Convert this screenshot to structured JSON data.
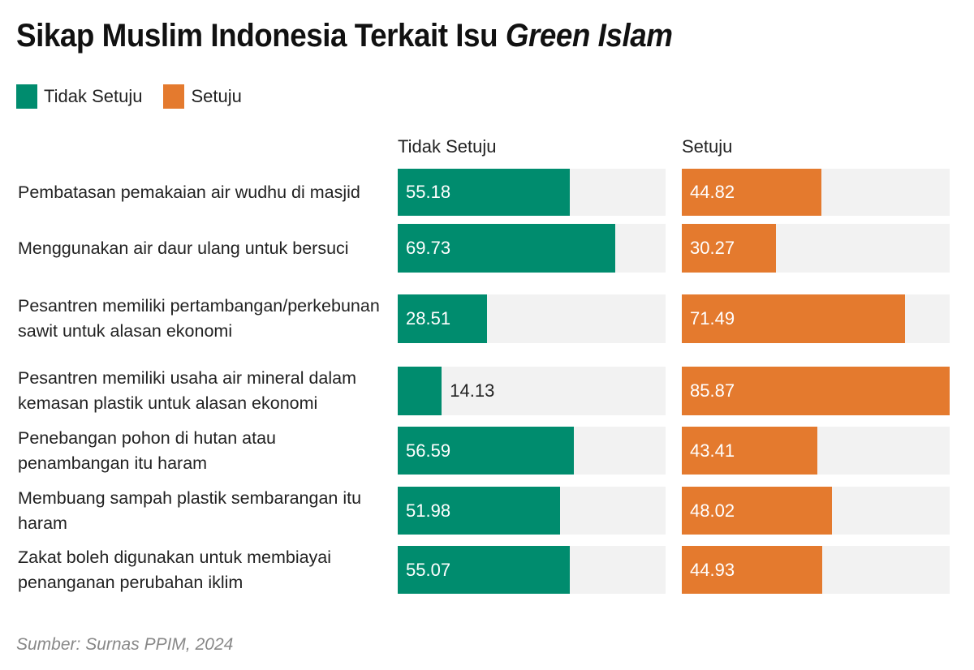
{
  "chart_data": {
    "type": "bar",
    "title_plain": "Sikap Muslim Indonesia Terkait Isu ",
    "title_italic": "Green Islam",
    "categories": [
      "Pembatasan pemakaian air wudhu di masjid",
      "Menggunakan air daur ulang untuk bersuci",
      "Pesantren memiliki pertambangan/perkebunan sawit untuk alasan ekonomi",
      "Pesantren memiliki usaha air mineral dalam kemasan plastik untuk alasan ekonomi",
      "Penebangan pohon di hutan atau penambangan itu haram",
      "Membuang sampah plastik sembarangan itu haram",
      "Zakat boleh digunakan untuk membiayai penanganan perubahan iklim"
    ],
    "series": [
      {
        "name": "Tidak Setuju",
        "color": "#008c6e",
        "values": [
          55.18,
          69.73,
          28.51,
          14.13,
          56.59,
          51.98,
          55.07
        ]
      },
      {
        "name": "Setuju",
        "color": "#e47a2e",
        "values": [
          44.82,
          30.27,
          71.49,
          85.87,
          43.41,
          48.02,
          44.93
        ]
      }
    ],
    "xlim": [
      0,
      85.87
    ],
    "legend_position": "top-left",
    "grid": false,
    "track_color": "#f2f2f2",
    "source": "Sumber: Surnas PPIM, 2024"
  }
}
